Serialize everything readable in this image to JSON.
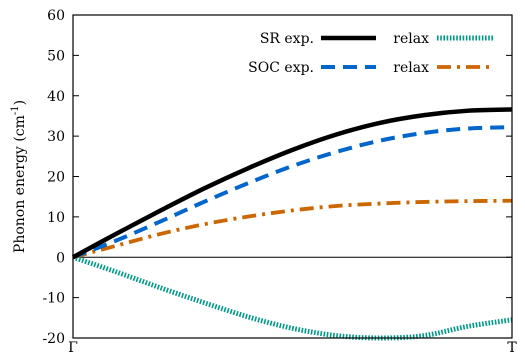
{
  "chart_data": {
    "type": "line",
    "ylabel": "Phonon energy (cm",
    "ylabel_sup": "-1",
    "ylabel_close": ")",
    "ylim": [
      -20,
      60
    ],
    "yticks": [
      -20,
      -10,
      0,
      10,
      20,
      30,
      40,
      50,
      60
    ],
    "xlim": [
      0,
      1
    ],
    "xtick_labels": [
      {
        "x": 0,
        "label": "Γ"
      },
      {
        "x": 1,
        "label": "T"
      }
    ],
    "zero_line": true,
    "grid": false,
    "legend_placement": "top-right",
    "legend_rows": [
      {
        "row_label": "SR exp.",
        "series_a": "sr_exp",
        "col2_label": "relax",
        "series_b": "sr_relax"
      },
      {
        "row_label": "SOC exp.",
        "series_a": "soc_exp",
        "col2_label": "relax",
        "series_b": "soc_relax"
      }
    ],
    "x": [
      0,
      0.1,
      0.2,
      0.3,
      0.4,
      0.5,
      0.6,
      0.7,
      0.8,
      0.9,
      1.0
    ],
    "series": [
      {
        "id": "sr_exp",
        "style": "solid",
        "color": "#000000",
        "values": [
          0,
          5.9,
          11.6,
          17.1,
          22.1,
          26.6,
          30.4,
          33.3,
          35.2,
          36.3,
          36.6
        ]
      },
      {
        "id": "sr_relax",
        "style": "dotted",
        "color": "#009988",
        "values": [
          0,
          -3.7,
          -7.6,
          -11.3,
          -14.8,
          -17.6,
          -19.4,
          -20.0,
          -19.4,
          -17.1,
          -15.5
        ]
      },
      {
        "id": "soc_exp",
        "style": "dashed",
        "color": "#0066cc",
        "values": [
          0,
          4.2,
          8.9,
          13.8,
          18.4,
          22.6,
          26.1,
          28.9,
          30.8,
          31.9,
          32.2
        ]
      },
      {
        "id": "soc_relax",
        "style": "dashdot",
        "color": "#cc6600",
        "values": [
          0,
          2.9,
          5.8,
          8.2,
          10.1,
          11.6,
          12.7,
          13.3,
          13.7,
          13.9,
          14.0
        ]
      }
    ]
  }
}
